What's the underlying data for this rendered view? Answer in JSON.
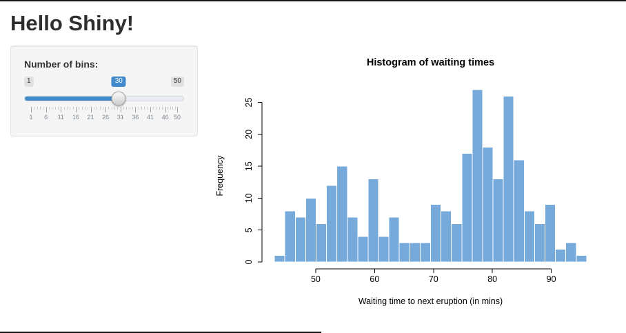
{
  "page": {
    "title": "Hello Shiny!"
  },
  "sidebar": {
    "bins_label": "Number of bins:",
    "slider": {
      "min": 1,
      "max": 50,
      "value": 30,
      "grid_values": [
        1,
        6,
        11,
        16,
        21,
        26,
        31,
        36,
        41,
        46,
        50
      ],
      "accent_color": "#428bca"
    }
  },
  "chart_data": {
    "type": "bar",
    "title": "Histogram of waiting times",
    "xlabel": "Waiting time to next eruption (in mins)",
    "ylabel": "Frequency",
    "xlim": [
      43,
      96
    ],
    "ylim": [
      0,
      27
    ],
    "bin_count": 30,
    "bin_width": 1.7667,
    "counts": [
      1,
      8,
      7,
      10,
      6,
      12,
      15,
      7,
      4,
      13,
      4,
      7,
      3,
      3,
      3,
      9,
      8,
      6,
      17,
      27,
      18,
      13,
      26,
      16,
      8,
      6,
      9,
      2,
      3,
      1
    ],
    "x_ticks": [
      50,
      60,
      70,
      80,
      90
    ],
    "y_ticks": [
      0,
      5,
      10,
      15,
      20,
      25
    ],
    "bar_color": "#75AADB",
    "bar_border": "#FFFFFF",
    "grid": false,
    "legend": false
  }
}
